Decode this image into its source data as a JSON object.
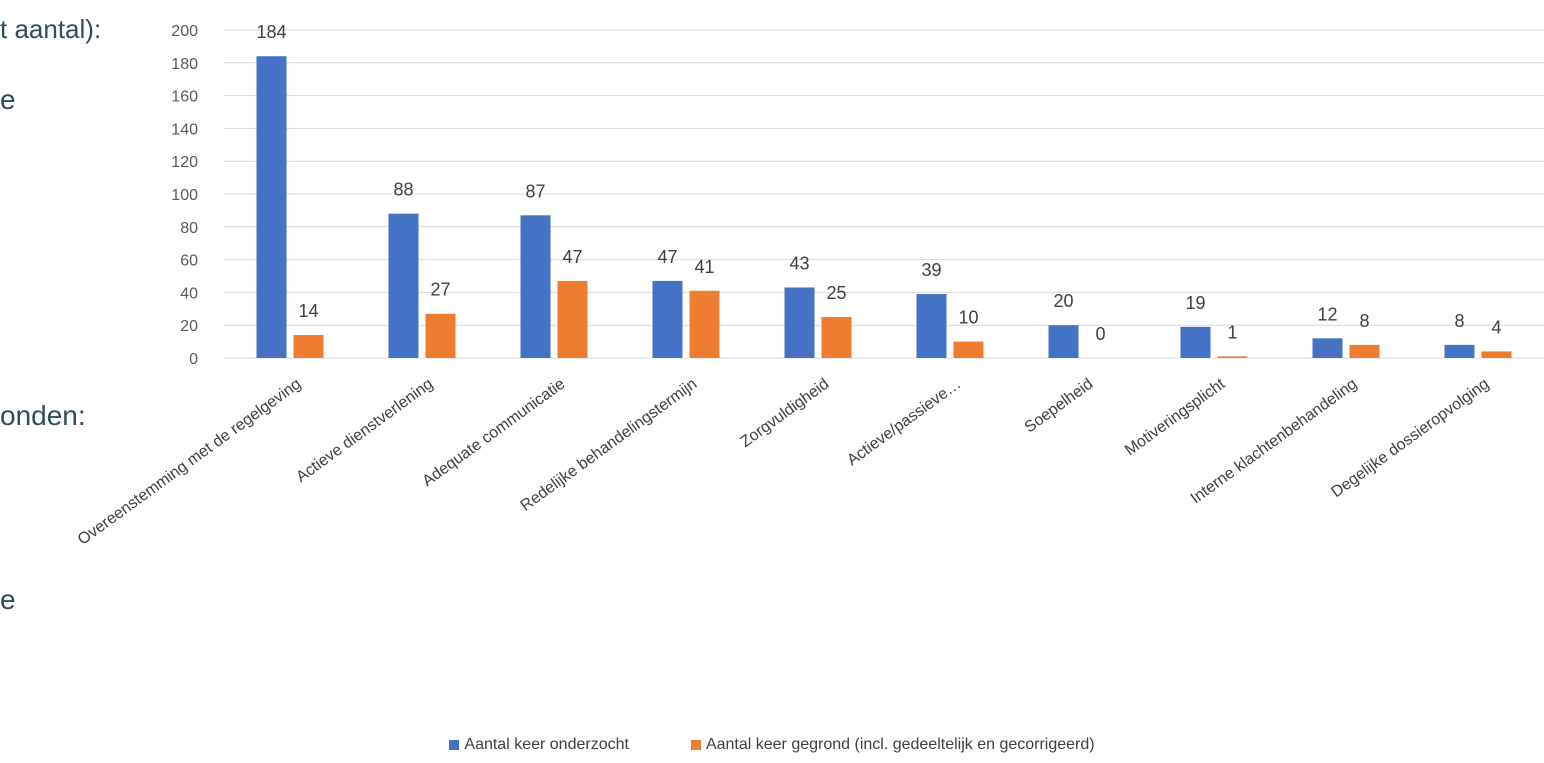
{
  "background_text": [
    {
      "text": "t aantal):"
    },
    {
      "text": "e"
    },
    {
      "text": "onden:"
    },
    {
      "text": "e"
    }
  ],
  "colors": {
    "series1": "#4472C4",
    "series2": "#ED7D31",
    "grid": "#D9D9D9"
  },
  "chart_data": {
    "type": "bar",
    "title": "",
    "xlabel": "",
    "ylabel": "",
    "ylim": [
      0,
      200
    ],
    "yticks": [
      "0",
      "20",
      "40",
      "60",
      "80",
      "100",
      "120",
      "140",
      "160",
      "180",
      "200"
    ],
    "grid": true,
    "legend_position": "bottom",
    "categories": [
      "Overeenstemming met de regelgeving",
      "Actieve dienstverlening",
      "Adequate communicatie",
      "Redelijke behandelingstermijn",
      "Zorgvuldigheid",
      "Actieve/passieve…",
      "Soepelheid",
      "Motiveringsplicht",
      "Interne klachtenbehandeling",
      "Degelijke dossieropvolging"
    ],
    "series": [
      {
        "name": "Aantal keer onderzocht",
        "values": [
          184,
          88,
          87,
          47,
          43,
          39,
          20,
          19,
          12,
          8
        ]
      },
      {
        "name": "Aantal keer gegrond (incl. gedeeltelijk en gecorrigeerd)",
        "values": [
          14,
          27,
          47,
          41,
          25,
          10,
          0,
          1,
          8,
          4
        ]
      }
    ]
  }
}
